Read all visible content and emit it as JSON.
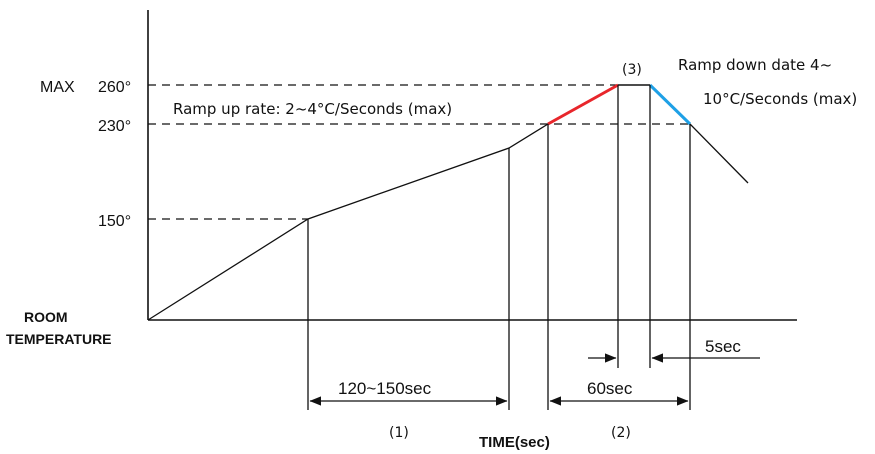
{
  "y_labels": {
    "max_prefix": "MAX",
    "t260": "260°",
    "t230": "230°",
    "t150": "150°",
    "room_line1": "ROOM",
    "room_line2": "TEMPERATURE"
  },
  "x_axis_label": "TIME(sec)",
  "ramp_up_note": "Ramp up rate: 2~4°C/Seconds (max)",
  "ramp_down_note_line1": "Ramp down date 4~",
  "ramp_down_note_line2": "10°C/Seconds (max)",
  "zones": {
    "zone1_label": "(1)",
    "zone2_label": "(2)",
    "zone3_label": "(3)"
  },
  "dimensions": {
    "preheat": "120~150sec",
    "reflow": "60sec",
    "peak": "5sec"
  },
  "colors": {
    "ramp_up": "#e8262b",
    "ramp_down": "#1ea0e6",
    "line": "#111111"
  }
}
